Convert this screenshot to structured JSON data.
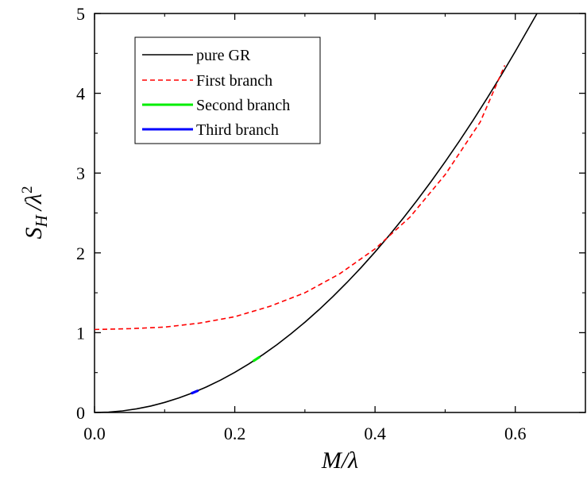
{
  "chart_data": {
    "type": "line",
    "title": "",
    "xlabel": "M/λ",
    "ylabel_main": "S",
    "ylabel_sub": "H",
    "ylabel_rest": "/λ",
    "ylabel_sup": "2",
    "xlim": [
      0.0,
      0.7
    ],
    "ylim": [
      0,
      5
    ],
    "x_ticks": [
      0.0,
      0.2,
      0.4,
      0.6
    ],
    "x_tick_labels": [
      "0.0",
      "0.2",
      "0.4",
      "0.6"
    ],
    "y_ticks": [
      0,
      1,
      2,
      3,
      4,
      5
    ],
    "y_tick_labels": [
      "0",
      "1",
      "2",
      "3",
      "4",
      "5"
    ],
    "grid": false,
    "legend_position": "top-left",
    "series": [
      {
        "name": "pure GR",
        "color": "#000000",
        "style": "solid",
        "x": [
          0.0,
          0.02,
          0.04,
          0.06,
          0.08,
          0.1,
          0.12,
          0.14,
          0.16,
          0.18,
          0.2,
          0.22,
          0.24,
          0.26,
          0.28,
          0.3,
          0.32,
          0.34,
          0.36,
          0.38,
          0.4,
          0.42,
          0.44,
          0.46,
          0.48,
          0.5,
          0.52,
          0.54,
          0.56,
          0.58,
          0.6,
          0.62,
          0.631
        ],
        "y": [
          0.0,
          0.005,
          0.02,
          0.045,
          0.08,
          0.126,
          0.181,
          0.246,
          0.322,
          0.407,
          0.503,
          0.608,
          0.724,
          0.849,
          0.985,
          1.131,
          1.287,
          1.453,
          1.629,
          1.815,
          2.011,
          2.217,
          2.433,
          2.659,
          2.895,
          3.142,
          3.398,
          3.664,
          3.941,
          4.227,
          4.524,
          4.831,
          5.0
        ]
      },
      {
        "name": "First branch",
        "color": "#ff0000",
        "style": "dashed",
        "x": [
          0.0,
          0.05,
          0.1,
          0.15,
          0.2,
          0.25,
          0.3,
          0.35,
          0.4,
          0.45,
          0.5,
          0.55,
          0.585
        ],
        "y": [
          1.04,
          1.05,
          1.07,
          1.12,
          1.2,
          1.33,
          1.5,
          1.74,
          2.05,
          2.45,
          2.98,
          3.64,
          4.35
        ]
      },
      {
        "name": "Second branch",
        "color": "#00ee00",
        "style": "solid",
        "x": [
          0.226,
          0.236
        ],
        "y": [
          0.642,
          0.699
        ]
      },
      {
        "name": "Third branch",
        "color": "#0000ff",
        "style": "solid",
        "x": [
          0.138,
          0.148
        ],
        "y": [
          0.239,
          0.275
        ]
      }
    ]
  }
}
